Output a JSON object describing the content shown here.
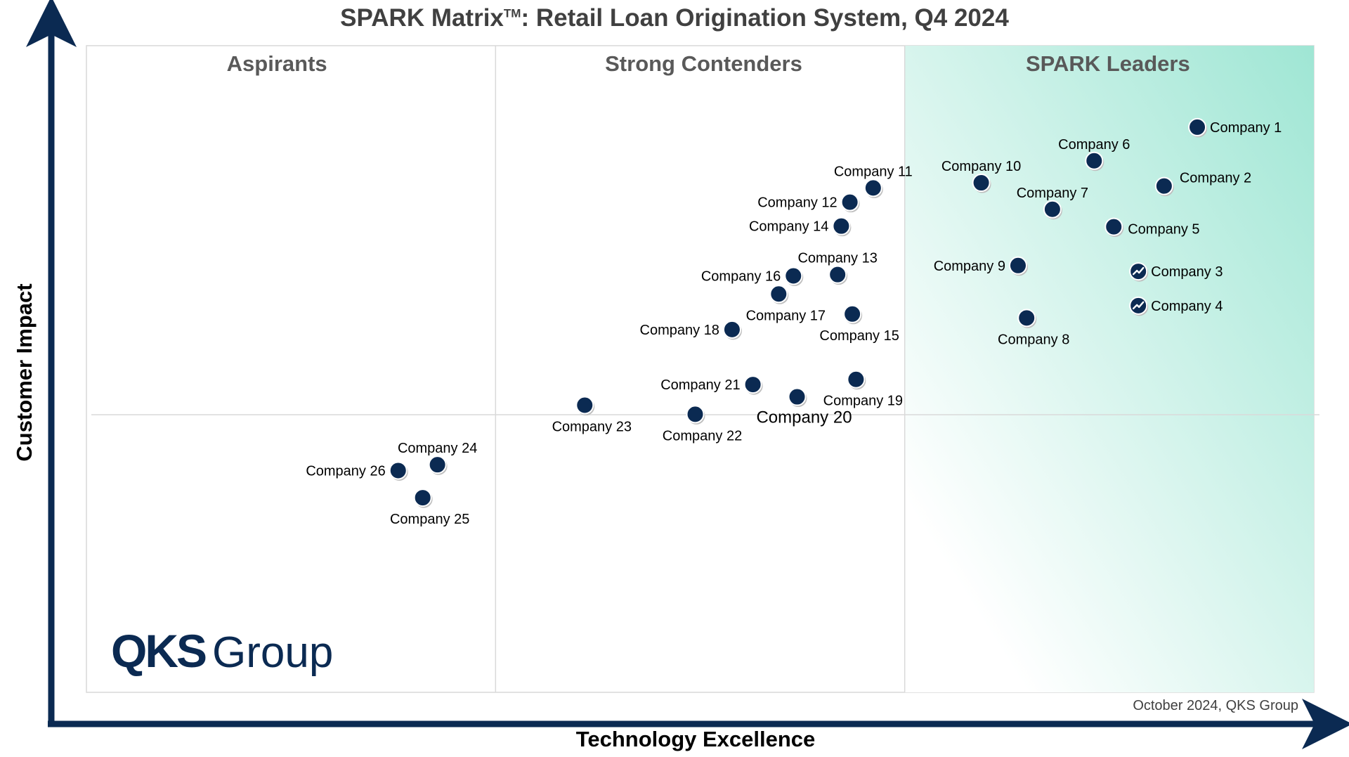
{
  "title": "SPARK Matrix",
  "title_tm": "TM",
  "title_rest": ": Retail Loan Origination System, Q4 2024",
  "footer": "October 2024, QKS Group",
  "logo": {
    "bold": "QKS",
    "regular": "Group"
  },
  "colors": {
    "axis": "#0b2a52",
    "point": "#0b2a52",
    "leaders_gradient_start": "#ffffff",
    "leaders_gradient_end": "#9fe6d4",
    "grid": "#d9d9d9"
  },
  "chart_data": {
    "type": "scatter",
    "title": "SPARK Matrix™: Retail Loan Origination System, Q4 2024",
    "xlabel": "Technology Excellence",
    "ylabel": "Customer Impact",
    "xlim": [
      0,
      100
    ],
    "ylim": [
      0,
      100
    ],
    "grid": false,
    "quadrants": [
      "Aspirants",
      "Strong Contenders",
      "SPARK Leaders"
    ],
    "points": [
      {
        "label": "Company 1",
        "x": 90.5,
        "y": 87.4,
        "label_pos": "right"
      },
      {
        "label": "Company 2",
        "x": 87.8,
        "y": 78.3,
        "label_pos": "upper-right"
      },
      {
        "label": "Company 3",
        "x": 85.7,
        "y": 65.1,
        "label_pos": "right",
        "icon": "trend-up-icon"
      },
      {
        "label": "Company 4",
        "x": 85.7,
        "y": 59.8,
        "label_pos": "right",
        "icon": "trend-up-icon"
      },
      {
        "label": "Company 5",
        "x": 83.7,
        "y": 72.0,
        "label_pos": "lower-right"
      },
      {
        "label": "Company 6",
        "x": 82.1,
        "y": 82.2,
        "label_pos": "above"
      },
      {
        "label": "Company 7",
        "x": 78.7,
        "y": 74.7,
        "label_pos": "above"
      },
      {
        "label": "Company 8",
        "x": 76.6,
        "y": 57.9,
        "label_pos": "below"
      },
      {
        "label": "Company 9",
        "x": 75.9,
        "y": 66.0,
        "label_pos": "left"
      },
      {
        "label": "Company 10",
        "x": 72.9,
        "y": 78.8,
        "label_pos": "above"
      },
      {
        "label": "Company 11",
        "x": 64.1,
        "y": 78.0,
        "label_pos": "above"
      },
      {
        "label": "Company 12",
        "x": 62.2,
        "y": 75.8,
        "label_pos": "left"
      },
      {
        "label": "Company 13",
        "x": 61.2,
        "y": 64.6,
        "label_pos": "above"
      },
      {
        "label": "Company 14",
        "x": 61.5,
        "y": 72.1,
        "label_pos": "left"
      },
      {
        "label": "Company 15",
        "x": 62.4,
        "y": 58.5,
        "label_pos": "below"
      },
      {
        "label": "Company 16",
        "x": 57.6,
        "y": 64.4,
        "label_pos": "left"
      },
      {
        "label": "Company 17",
        "x": 56.4,
        "y": 61.6,
        "label_pos": "below"
      },
      {
        "label": "Company 18",
        "x": 52.6,
        "y": 56.1,
        "label_pos": "left"
      },
      {
        "label": "Company 19",
        "x": 62.7,
        "y": 48.4,
        "label_pos": "below"
      },
      {
        "label": "Company 20",
        "x": 57.9,
        "y": 45.7,
        "label_pos": "below",
        "label_large": true
      },
      {
        "label": "Company 21",
        "x": 54.3,
        "y": 47.6,
        "label_pos": "left"
      },
      {
        "label": "Company 22",
        "x": 49.6,
        "y": 43.0,
        "label_pos": "below"
      },
      {
        "label": "Company 23",
        "x": 40.6,
        "y": 44.4,
        "label_pos": "below"
      },
      {
        "label": "Company 24",
        "x": 28.6,
        "y": 35.2,
        "label_pos": "above"
      },
      {
        "label": "Company 25",
        "x": 27.4,
        "y": 30.1,
        "label_pos": "below"
      },
      {
        "label": "Company 26",
        "x": 25.4,
        "y": 34.3,
        "label_pos": "left"
      }
    ]
  }
}
